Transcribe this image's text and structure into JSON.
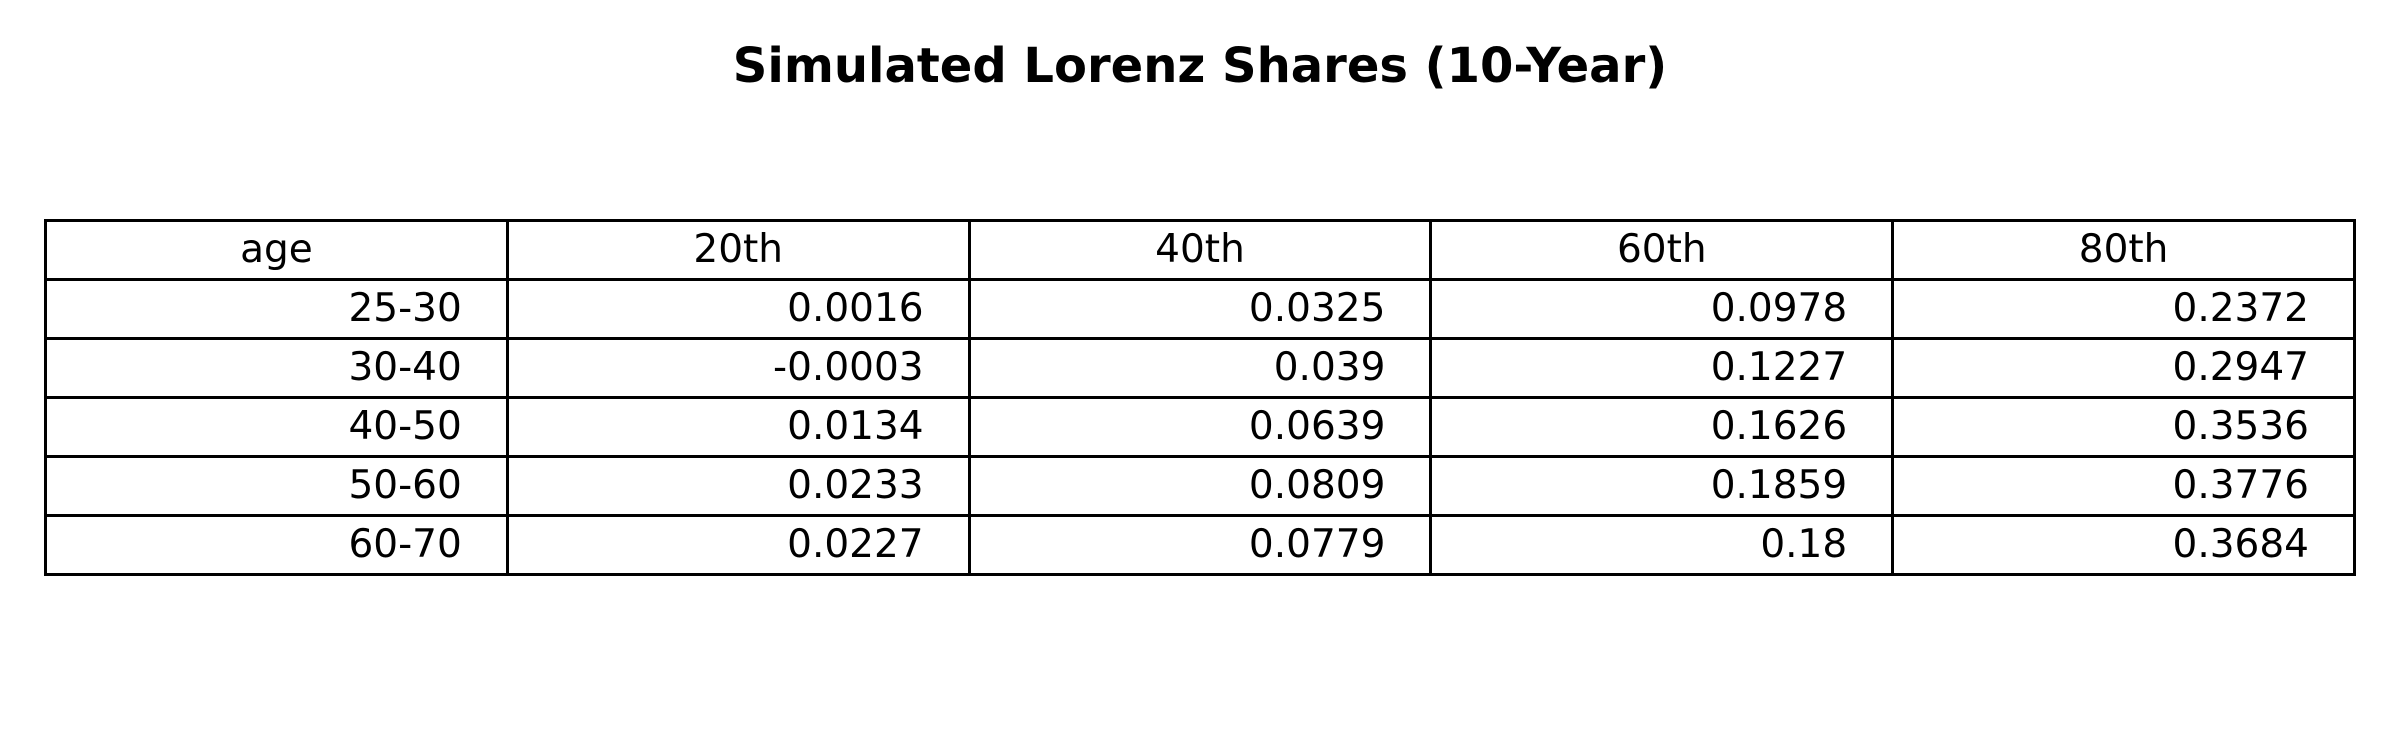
{
  "chart_data": {
    "type": "table",
    "title": "Simulated Lorenz Shares (10-Year)",
    "columns": [
      "age",
      "20th",
      "40th",
      "60th",
      "80th"
    ],
    "rows": [
      [
        "25-30",
        "0.0016",
        "0.0325",
        "0.0978",
        "0.2372"
      ],
      [
        "30-40",
        "-0.0003",
        "0.039",
        "0.1227",
        "0.2947"
      ],
      [
        "40-50",
        "0.0134",
        "0.0639",
        "0.1626",
        "0.3536"
      ],
      [
        "50-60",
        "0.0233",
        "0.0809",
        "0.1859",
        "0.3776"
      ],
      [
        "60-70",
        "0.0227",
        "0.0779",
        "0.18",
        "0.3684"
      ]
    ]
  }
}
